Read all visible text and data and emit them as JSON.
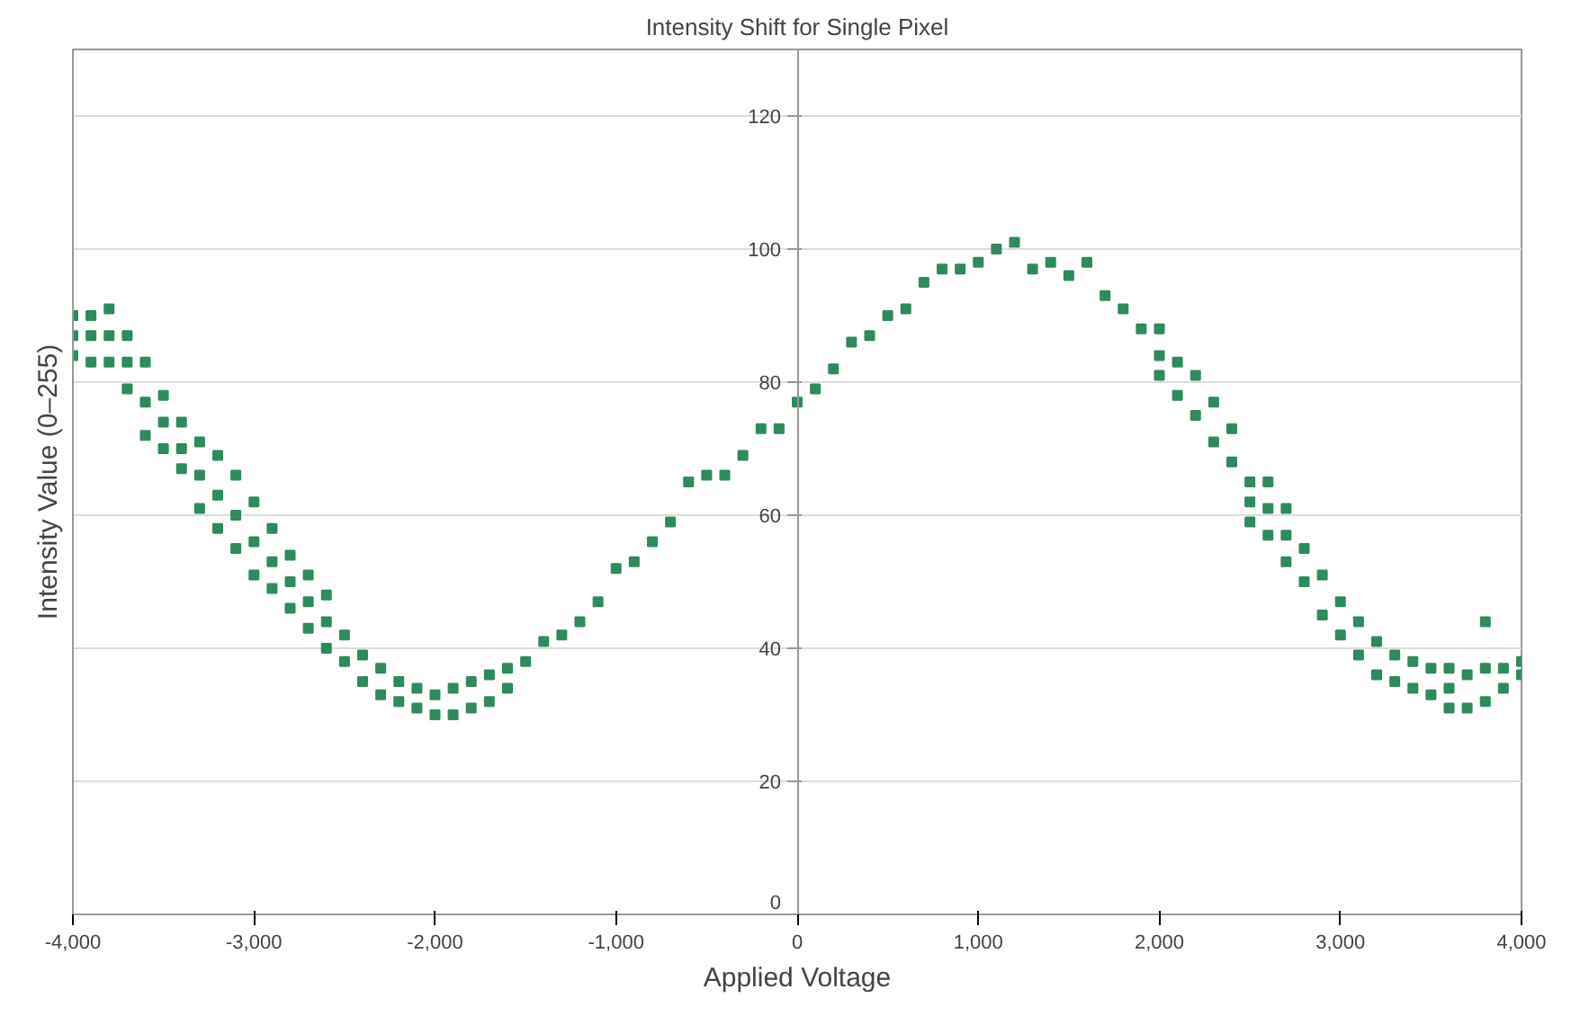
{
  "chart_data": {
    "type": "scatter",
    "title": "Intensity Shift for Single Pixel",
    "xlabel": "Applied Voltage",
    "ylabel": "Intensity Value (0–255)",
    "xlim": [
      -4000,
      4000
    ],
    "ylim": [
      0,
      130
    ],
    "xticks": [
      {
        "value": -4000,
        "label": "-4,000"
      },
      {
        "value": -3000,
        "label": "-3,000"
      },
      {
        "value": -2000,
        "label": "-2,000"
      },
      {
        "value": -1000,
        "label": "-1,000"
      },
      0,
      {
        "value": 1000,
        "label": "1,000"
      },
      {
        "value": 2000,
        "label": "2,000"
      },
      {
        "value": 3000,
        "label": "3,000"
      },
      {
        "value": 4000,
        "label": "4,000"
      }
    ],
    "yticks": [
      0,
      20,
      40,
      60,
      80,
      100,
      120
    ],
    "grid": "y",
    "marker": "square",
    "series": [
      {
        "color": "#2f8a5c",
        "x": [
          -4000,
          -4000,
          -4000,
          -3900,
          -3900,
          -3900,
          -3800,
          -3800,
          -3800,
          -3700,
          -3700,
          -3700,
          -3600,
          -3600,
          -3600,
          -3500,
          -3500,
          -3500,
          -3400,
          -3400,
          -3400,
          -3300,
          -3300,
          -3300,
          -3200,
          -3200,
          -3200,
          -3100,
          -3100,
          -3100,
          -3000,
          -3000,
          -3000,
          -2900,
          -2900,
          -2900,
          -2800,
          -2800,
          -2800,
          -2700,
          -2700,
          -2700,
          -2600,
          -2600,
          -2600,
          -2500,
          -2500,
          -2400,
          -2400,
          -2300,
          -2300,
          -2200,
          -2200,
          -2100,
          -2100,
          -2000,
          -2000,
          -1900,
          -1900,
          -1800,
          -1800,
          -1700,
          -1700,
          -1600,
          -1600,
          -1500,
          -1400,
          -1300,
          -1200,
          -1100,
          -1000,
          -900,
          -800,
          -700,
          -600,
          -500,
          -400,
          -300,
          -200,
          -100,
          0,
          100,
          200,
          300,
          400,
          500,
          600,
          700,
          800,
          900,
          1000,
          1100,
          1200,
          1300,
          1400,
          1500,
          1600,
          1700,
          1800,
          1900,
          2000,
          2000,
          2000,
          2100,
          2100,
          2200,
          2200,
          2300,
          2300,
          2400,
          2400,
          2500,
          2500,
          2500,
          2600,
          2600,
          2600,
          2700,
          2700,
          2700,
          2800,
          2800,
          2900,
          2900,
          3000,
          3000,
          3100,
          3100,
          3200,
          3200,
          3300,
          3300,
          3400,
          3400,
          3500,
          3500,
          3600,
          3600,
          3600,
          3700,
          3700,
          3800,
          3800,
          3800,
          3900,
          3900,
          4000,
          4000
        ],
        "values": [
          84,
          87,
          90,
          83,
          87,
          90,
          83,
          87,
          91,
          79,
          83,
          87,
          72,
          77,
          83,
          70,
          74,
          78,
          67,
          70,
          74,
          61,
          66,
          71,
          58,
          63,
          69,
          55,
          60,
          66,
          51,
          56,
          62,
          49,
          53,
          58,
          46,
          50,
          54,
          43,
          47,
          51,
          40,
          44,
          48,
          38,
          42,
          35,
          39,
          33,
          37,
          32,
          35,
          31,
          34,
          30,
          33,
          30,
          34,
          31,
          35,
          32,
          36,
          34,
          37,
          38,
          41,
          42,
          44,
          47,
          52,
          53,
          56,
          59,
          65,
          66,
          66,
          69,
          73,
          73,
          77,
          79,
          82,
          86,
          87,
          90,
          91,
          95,
          97,
          97,
          98,
          100,
          101,
          97,
          98,
          96,
          98,
          93,
          91,
          88,
          81,
          84,
          88,
          78,
          83,
          75,
          81,
          71,
          77,
          68,
          73,
          59,
          62,
          65,
          57,
          61,
          65,
          53,
          57,
          61,
          50,
          55,
          45,
          51,
          42,
          47,
          39,
          44,
          36,
          41,
          35,
          39,
          34,
          38,
          33,
          37,
          31,
          34,
          37,
          31,
          36,
          32,
          37,
          44,
          34,
          37,
          36,
          38
        ]
      }
    ]
  }
}
